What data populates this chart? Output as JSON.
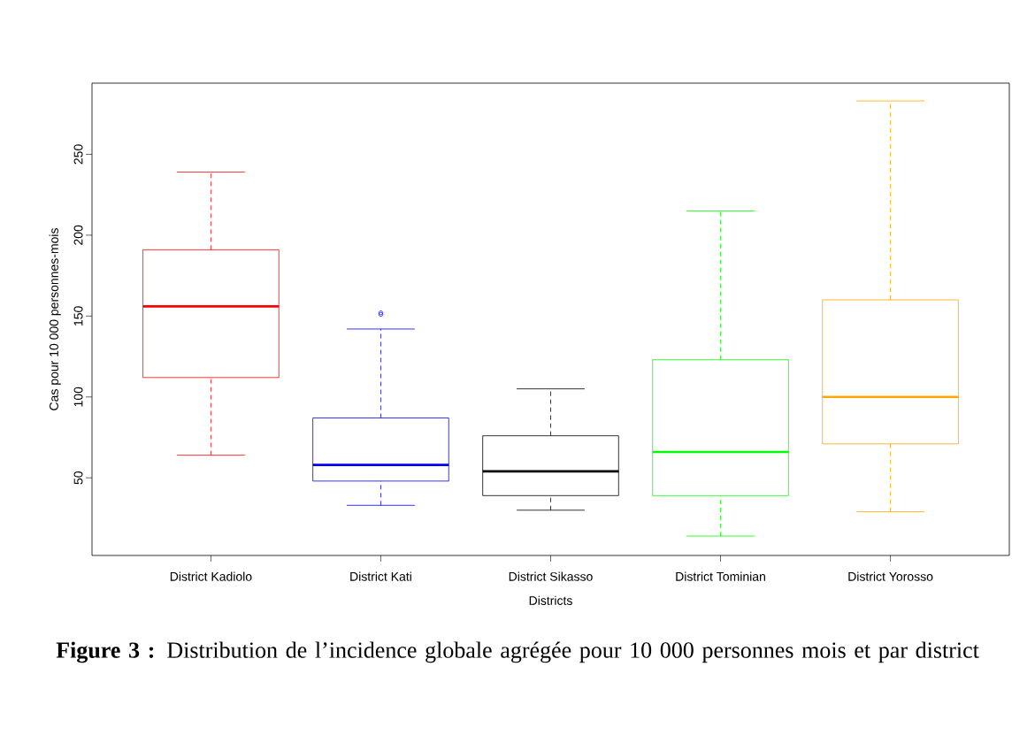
{
  "chart_data": {
    "type": "box",
    "categories": [
      "District Kadiolo",
      "District Kati",
      "District Sikasso",
      "District Tominian",
      "District Yorosso"
    ],
    "boxes": [
      {
        "low": 64,
        "q1": 112,
        "median": 156,
        "q3": 191,
        "high": 239
      },
      {
        "low": 33,
        "q1": 48,
        "median": 58,
        "q3": 87,
        "high": 142,
        "outliers": [
          151,
          152
        ]
      },
      {
        "low": 30,
        "q1": 39,
        "median": 54,
        "q3": 76,
        "high": 105
      },
      {
        "low": 14,
        "q1": 39,
        "median": 66,
        "q3": 123,
        "high": 215
      },
      {
        "low": 29,
        "q1": 71,
        "median": 100,
        "q3": 160,
        "high": 283
      }
    ],
    "colors": [
      "#ff0000",
      "#0000ff",
      "#000000",
      "#00ff00",
      "#ffa500"
    ],
    "ylim": [
      2,
      294
    ],
    "yticks": [
      50,
      100,
      150,
      200,
      250
    ],
    "xlabel": "Districts",
    "ylabel": "Cas pour 10 000 personnes-mois",
    "annotations": [
      "**Figure 3 :** Distribution de l’incidence globale agrégée pour 10 000 personnes mois et par district"
    ]
  }
}
